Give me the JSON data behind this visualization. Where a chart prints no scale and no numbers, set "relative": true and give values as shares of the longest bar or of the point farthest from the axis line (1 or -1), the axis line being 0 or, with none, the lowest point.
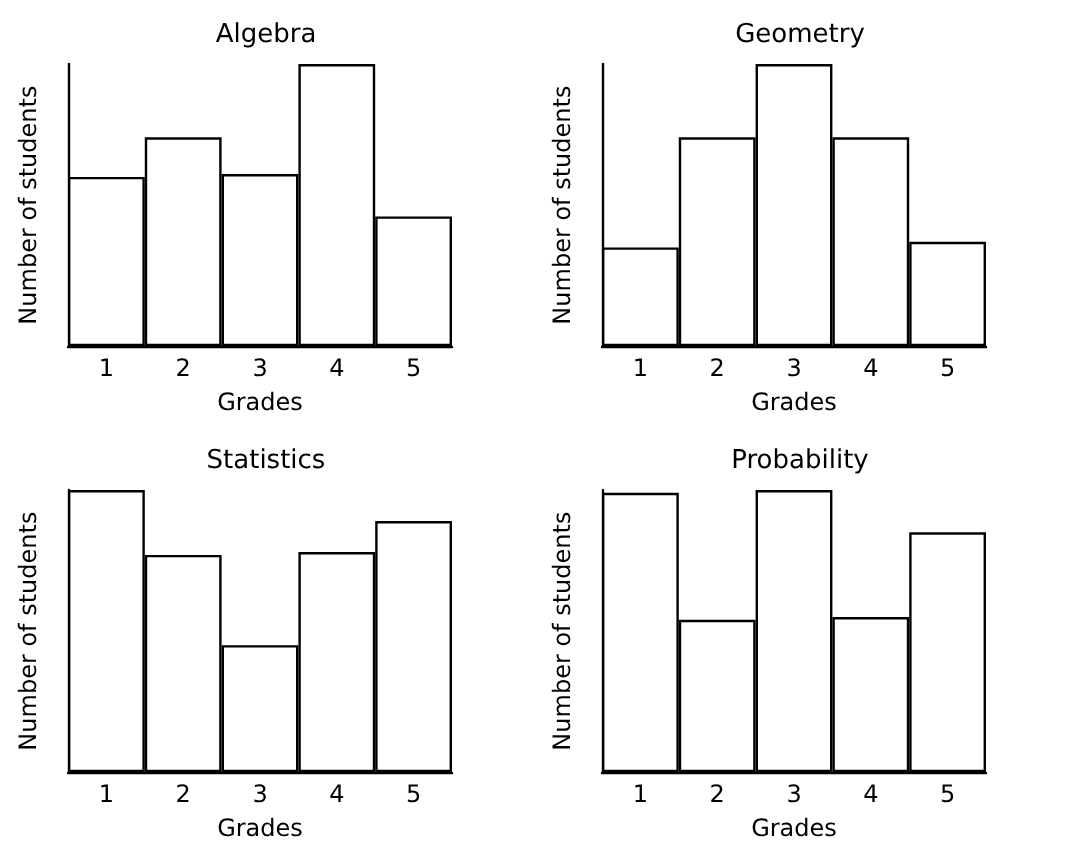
{
  "chart_data": [
    {
      "type": "bar",
      "title": "Algebra",
      "xlabel": "Grades",
      "ylabel": "Number of students",
      "categories": [
        "1",
        "2",
        "3",
        "4",
        "5"
      ],
      "values": [
        0.6,
        0.74,
        0.61,
        1,
        0.46
      ],
      "color": "#ffffff",
      "relative": true
    },
    {
      "type": "bar",
      "title": "Geometry",
      "xlabel": "Grades",
      "ylabel": "Number of students",
      "categories": [
        "1",
        "2",
        "3",
        "4",
        "5"
      ],
      "values": [
        0.35,
        0.74,
        1,
        0.74,
        0.37
      ],
      "color": "#ffffff",
      "relative": true
    },
    {
      "type": "bar",
      "title": "Statistics",
      "xlabel": "Grades",
      "ylabel": "Number of students",
      "categories": [
        "1",
        "2",
        "3",
        "4",
        "5"
      ],
      "values": [
        1,
        0.77,
        0.45,
        0.78,
        0.89
      ],
      "color": "#ffffff",
      "relative": true
    },
    {
      "type": "bar",
      "title": "Probability",
      "xlabel": "Grades",
      "ylabel": "Number of students",
      "categories": [
        "1",
        "2",
        "3",
        "4",
        "5"
      ],
      "values": [
        0.99,
        0.54,
        1,
        0.55,
        0.85
      ],
      "color": "#ffffff",
      "relative": true
    }
  ]
}
